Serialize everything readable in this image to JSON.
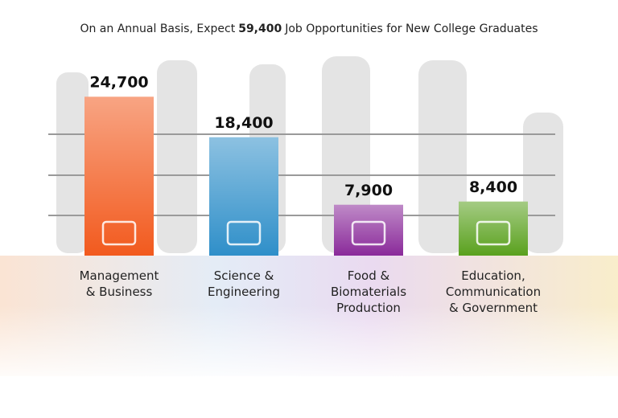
{
  "chart_data": {
    "type": "bar",
    "title": [
      "On an Annual Basis, Expect",
      "59,400",
      "Job Opportunities for New College Graduates"
    ],
    "categories": [
      [
        "Management",
        "& Business"
      ],
      [
        "Science &",
        "Engineering"
      ],
      [
        "Food &",
        "Biomaterials",
        "Production"
      ],
      [
        "Education,",
        "Communication",
        "& Government"
      ]
    ],
    "values": [
      24700,
      18400,
      7900,
      8400
    ],
    "value_labels": [
      "24,700",
      "18,400",
      "7,900",
      "8,400"
    ],
    "colors": [
      "#f25a1e",
      "#2f8fc9",
      "#8a2a9a",
      "#5aa11e"
    ],
    "ylim": [
      0,
      25000
    ]
  }
}
